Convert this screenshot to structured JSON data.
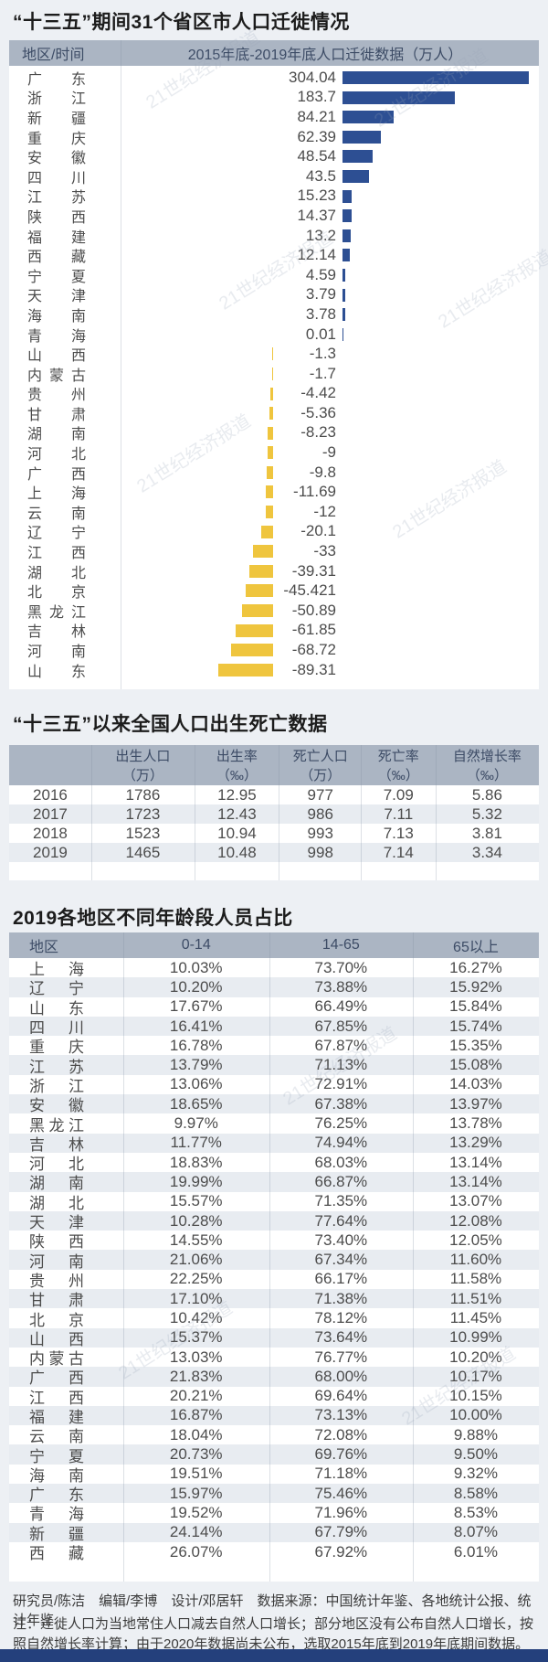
{
  "page": {
    "background": "#edf0f4",
    "positive_bar_color": "#2d4f93",
    "negative_bar_color": "#efc53e",
    "header_band_color": "#abb5c3",
    "stripe_color": "#e8ecf1",
    "bottom_bar_color": "#24407c",
    "watermark_text": "21世纪经济报道"
  },
  "chart_data": [
    {
      "type": "bar",
      "orientation": "horizontal",
      "title": "“十三五”期间31个省区市人口迁徙情况",
      "column_header_region": "地区/时间",
      "column_header_data": "2015年底-2019年底人口迁徙数据（万人）",
      "unit": "万人",
      "categories": [
        "广东",
        "浙江",
        "新疆",
        "重庆",
        "安徽",
        "四川",
        "江苏",
        "陕西",
        "福建",
        "西藏",
        "宁夏",
        "天津",
        "海南",
        "青海",
        "山西",
        "内蒙古",
        "贵州",
        "甘肃",
        "湖南",
        "河北",
        "广西",
        "上海",
        "云南",
        "辽宁",
        "江西",
        "湖北",
        "北京",
        "黑龙江",
        "吉林",
        "河南",
        "山东"
      ],
      "values": [
        304.04,
        183.7,
        84.21,
        62.39,
        48.54,
        43.5,
        15.23,
        14.37,
        13.2,
        12.14,
        4.59,
        3.79,
        3.78,
        0.01,
        -1.3,
        -1.7,
        -4.42,
        -5.36,
        -8.23,
        -9,
        -9.8,
        -11.69,
        -12,
        -20.1,
        -33,
        -39.31,
        -45.421,
        -50.89,
        -61.85,
        -68.72,
        -89.31
      ],
      "positive_color": "#2d4f93",
      "negative_color": "#efc53e"
    },
    {
      "type": "table",
      "title": "“十三五”以来全国人口出生死亡数据",
      "headers": [
        {
          "t": "",
          "u": ""
        },
        {
          "t": "出生人口",
          "u": "（万）"
        },
        {
          "t": "出生率",
          "u": "（‰）"
        },
        {
          "t": "死亡人口",
          "u": "（万）"
        },
        {
          "t": "死亡率",
          "u": "（‰）"
        },
        {
          "t": "自然增长率",
          "u": "（‰）"
        }
      ],
      "rows": [
        [
          "2016",
          "1786",
          "12.95",
          "977",
          "7.09",
          "5.86"
        ],
        [
          "2017",
          "1723",
          "12.43",
          "986",
          "7.11",
          "5.32"
        ],
        [
          "2018",
          "1523",
          "10.94",
          "993",
          "7.13",
          "3.81"
        ],
        [
          "2019",
          "1465",
          "10.48",
          "998",
          "7.14",
          "3.34"
        ]
      ]
    },
    {
      "type": "table",
      "title": "2019各地区不同年龄段人员占比",
      "headers": [
        "地区",
        "0-14",
        "14-65",
        "65以上"
      ],
      "rows": [
        [
          "上海",
          "10.03%",
          "73.70%",
          "16.27%"
        ],
        [
          "辽宁",
          "10.20%",
          "73.88%",
          "15.92%"
        ],
        [
          "山东",
          "17.67%",
          "66.49%",
          "15.84%"
        ],
        [
          "四川",
          "16.41%",
          "67.85%",
          "15.74%"
        ],
        [
          "重庆",
          "16.78%",
          "67.87%",
          "15.35%"
        ],
        [
          "江苏",
          "13.79%",
          "71.13%",
          "15.08%"
        ],
        [
          "浙江",
          "13.06%",
          "72.91%",
          "14.03%"
        ],
        [
          "安徽",
          "18.65%",
          "67.38%",
          "13.97%"
        ],
        [
          "黑龙江",
          "9.97%",
          "76.25%",
          "13.78%"
        ],
        [
          "吉林",
          "11.77%",
          "74.94%",
          "13.29%"
        ],
        [
          "河北",
          "18.83%",
          "68.03%",
          "13.14%"
        ],
        [
          "湖南",
          "19.99%",
          "66.87%",
          "13.14%"
        ],
        [
          "湖北",
          "15.57%",
          "71.35%",
          "13.07%"
        ],
        [
          "天津",
          "10.28%",
          "77.64%",
          "12.08%"
        ],
        [
          "陕西",
          "14.55%",
          "73.40%",
          "12.05%"
        ],
        [
          "河南",
          "21.06%",
          "67.34%",
          "11.60%"
        ],
        [
          "贵州",
          "22.25%",
          "66.17%",
          "11.58%"
        ],
        [
          "甘肃",
          "17.10%",
          "71.38%",
          "11.51%"
        ],
        [
          "北京",
          "10.42%",
          "78.12%",
          "11.45%"
        ],
        [
          "山西",
          "15.37%",
          "73.64%",
          "10.99%"
        ],
        [
          "内蒙古",
          "13.03%",
          "76.77%",
          "10.20%"
        ],
        [
          "广西",
          "21.83%",
          "68.00%",
          "10.17%"
        ],
        [
          "江西",
          "20.21%",
          "69.64%",
          "10.15%"
        ],
        [
          "福建",
          "16.87%",
          "73.13%",
          "10.00%"
        ],
        [
          "云南",
          "18.04%",
          "72.08%",
          "9.88%"
        ],
        [
          "宁夏",
          "20.73%",
          "69.76%",
          "9.50%"
        ],
        [
          "海南",
          "19.51%",
          "71.18%",
          "9.32%"
        ],
        [
          "广东",
          "15.97%",
          "75.46%",
          "8.58%"
        ],
        [
          "青海",
          "19.52%",
          "71.96%",
          "8.53%"
        ],
        [
          "新疆",
          "24.14%",
          "67.79%",
          "8.07%"
        ],
        [
          "西藏",
          "26.07%",
          "67.92%",
          "6.01%"
        ]
      ]
    }
  ],
  "footer": {
    "credit": "研究员/陈洁　编辑/李博　设计/邓居轩　数据来源：中国统计年鉴、各地统计公报、统计年鉴",
    "note": "注：迁徙人口为当地常住人口减去自然人口增长；部分地区没有公布自然人口增长，按照自然增长率计算；由于2020年数据尚未公布，选取2015年底到2019年底期间数据。"
  }
}
